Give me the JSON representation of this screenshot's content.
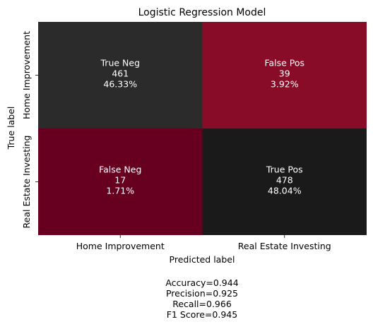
{
  "chart_data": {
    "type": "heatmap",
    "title": "Logistic Regression Model",
    "xlabel": "Predicted label",
    "ylabel": "True label",
    "x_categories": [
      "Home Improvement",
      "Real Estate Investing"
    ],
    "y_categories": [
      "Home Improvement",
      "Real Estate Investing"
    ],
    "cells": [
      [
        {
          "name": "True Neg",
          "count": "461",
          "percent": "46.33%",
          "value": 461,
          "color": "#2b2b2b"
        },
        {
          "name": "False Pos",
          "count": "39",
          "percent": "3.92%",
          "value": 39,
          "color": "#880c27"
        }
      ],
      [
        {
          "name": "False Neg",
          "count": "17",
          "percent": "1.71%",
          "value": 17,
          "color": "#670020"
        },
        {
          "name": "True Pos",
          "count": "478",
          "percent": "48.04%",
          "value": 478,
          "color": "#1a1a1a"
        }
      ]
    ],
    "stats": [
      "Accuracy=0.944",
      "Precision=0.925",
      "Recall=0.966",
      "F1 Score=0.945"
    ],
    "grid": false,
    "colorbar": false
  }
}
